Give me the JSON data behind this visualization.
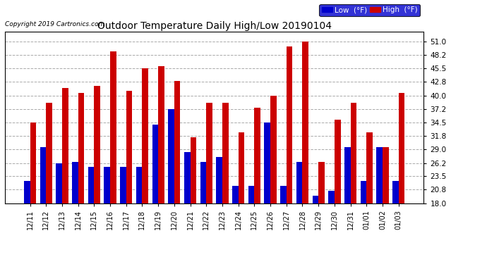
{
  "title": "Outdoor Temperature Daily High/Low 20190104",
  "copyright": "Copyright 2019 Cartronics.com",
  "legend_low": "Low  (°F)",
  "legend_high": "High  (°F)",
  "categories": [
    "12/11",
    "12/12",
    "12/13",
    "12/14",
    "12/15",
    "12/16",
    "12/17",
    "12/18",
    "12/19",
    "12/20",
    "12/21",
    "12/22",
    "12/23",
    "12/24",
    "12/25",
    "12/26",
    "12/27",
    "12/28",
    "12/29",
    "12/30",
    "12/31",
    "01/01",
    "01/02",
    "01/03"
  ],
  "low_values": [
    22.5,
    29.5,
    26.2,
    26.5,
    25.5,
    25.5,
    25.5,
    25.5,
    34.0,
    37.2,
    28.5,
    26.5,
    27.5,
    21.5,
    21.5,
    34.5,
    21.5,
    26.5,
    19.5,
    20.5,
    29.5,
    22.5,
    29.5,
    22.5
  ],
  "high_values": [
    34.5,
    38.5,
    41.5,
    40.5,
    42.0,
    49.0,
    41.0,
    45.5,
    46.0,
    43.0,
    31.5,
    38.5,
    38.5,
    32.5,
    37.5,
    40.0,
    50.0,
    51.0,
    26.5,
    35.0,
    38.5,
    32.5,
    29.5,
    40.5
  ],
  "low_color": "#0000cc",
  "high_color": "#cc0000",
  "bg_color": "#ffffff",
  "plot_bg_color": "#ffffff",
  "grid_color": "#aaaaaa",
  "ylim": [
    18.0,
    53.0
  ],
  "ybase": 18.0,
  "yticks": [
    18.0,
    20.8,
    23.5,
    26.2,
    29.0,
    31.8,
    34.5,
    37.2,
    40.0,
    42.8,
    45.5,
    48.2,
    51.0
  ],
  "bar_width": 0.38
}
